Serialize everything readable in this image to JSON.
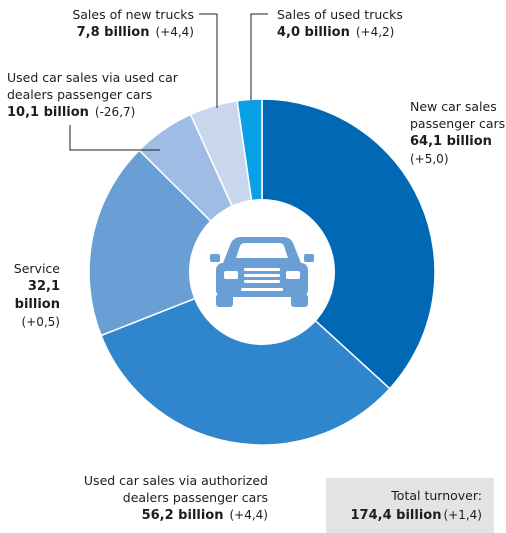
{
  "chart_data": {
    "type": "pie",
    "series": [
      {
        "label_line1": "New car sales",
        "label_line2": "passenger cars",
        "value": 64.1,
        "value_text": "64,1 billion",
        "change": "(+5,0)",
        "color": "#0068b4"
      },
      {
        "label_line1": "Used car sales via authorized",
        "label_line2": "dealers passenger cars",
        "value": 56.2,
        "value_text": "56,2 billion",
        "change": "(+4,4)",
        "color": "#2f86cc"
      },
      {
        "label_line1": "Service",
        "label_line2": "",
        "value": 32.1,
        "value_text": "32,1 billion",
        "change": "(+0,5)",
        "color": "#6a9fd6"
      },
      {
        "label_line1": "Used car sales via used car",
        "label_line2": "dealers passenger cars",
        "value": 10.1,
        "value_text": "10,1 billion",
        "change": "(-26,7)",
        "color": "#9fbde4"
      },
      {
        "label_line1": "Sales of new trucks",
        "label_line2": "",
        "value": 7.8,
        "value_text": "7,8 billion",
        "change": "(+4,4)",
        "color": "#c9d7ee"
      },
      {
        "label_line1": "Sales of used trucks",
        "label_line2": "",
        "value": 4.0,
        "value_text": "4,0 billion",
        "change": "(+4,2)",
        "color": "#0aa0e6"
      }
    ],
    "total": {
      "label": "Total turnover:",
      "value_text": "174,4 billion",
      "change": "(+1,4)"
    },
    "center_icon": "car-front-icon"
  }
}
